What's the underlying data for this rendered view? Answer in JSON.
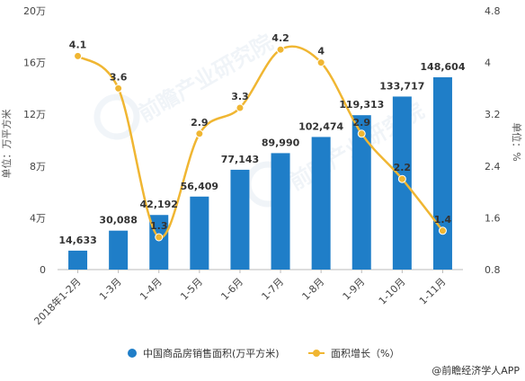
{
  "chart_data": {
    "type": "bar",
    "categories": [
      "2018年1-2月",
      "1-3月",
      "1-4月",
      "1-5月",
      "1-6月",
      "1-7月",
      "1-8月",
      "1-9月",
      "1-10月",
      "1-11月"
    ],
    "series": [
      {
        "name": "中国商品房销售面积(万平方米)",
        "type": "bar",
        "axis": "left",
        "values": [
          14633,
          30088,
          42192,
          56409,
          77143,
          89990,
          102474,
          119313,
          133717,
          148604
        ],
        "labels": [
          "14,633",
          "30,088",
          "42,192",
          "56,409",
          "77,143",
          "89,990",
          "102,474",
          "119,313",
          "133,717",
          "148,604"
        ],
        "color": "#1f7ec8"
      },
      {
        "name": "面积增长（%）",
        "type": "line",
        "axis": "right",
        "values": [
          4.1,
          3.6,
          1.3,
          2.9,
          3.3,
          4.2,
          4.0,
          2.9,
          2.2,
          1.4
        ],
        "labels": [
          "4.1",
          "3.6",
          "1.3",
          "2.9",
          "3.3",
          "4.2",
          "4",
          "2.9",
          "2.2",
          "1.4"
        ],
        "color": "#f0b632"
      }
    ],
    "left_axis": {
      "label": "单位：万平方米",
      "ylim": [
        0,
        200000
      ],
      "ticks": [
        0,
        40000,
        80000,
        120000,
        160000,
        200000
      ],
      "tick_labels": [
        "0",
        "4万",
        "8万",
        "12万",
        "16万",
        "20万"
      ]
    },
    "right_axis": {
      "label": "单位：%",
      "ylim": [
        0.8,
        4.8
      ],
      "ticks": [
        0.8,
        1.6,
        2.4,
        3.2,
        4.0,
        4.8
      ],
      "tick_labels": [
        "0.8",
        "1.6",
        "2.4",
        "3.2",
        "4",
        "4.8"
      ]
    },
    "grid": false,
    "legend_position": "bottom-center"
  },
  "credit": "@前瞻经济学人APP",
  "watermark": "前瞻产业研究院"
}
